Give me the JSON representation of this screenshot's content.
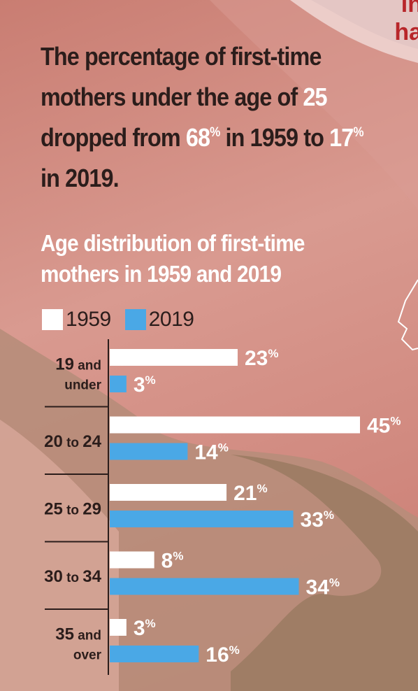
{
  "corner": {
    "line1": "in",
    "line2": "ha"
  },
  "headline": {
    "part1": "The percentage of first-time mothers under the age of ",
    "age": "25",
    "part2": " dropped from ",
    "from_value": "68",
    "pct1": "%",
    "part3": " in 1959 to ",
    "to_value": "17",
    "pct2": "%",
    "part4": " in 2019."
  },
  "colors": {
    "series_1959": "#ffffff",
    "series_2019": "#4aa8e6",
    "text_dark": "#2b1d1b"
  },
  "chart_data": {
    "type": "bar",
    "orientation": "horizontal",
    "title": "Age distribution of first-time mothers in 1959 and 2019",
    "categories": [
      {
        "lines": [
          {
            "num": "19",
            "word": " and"
          },
          {
            "num": "",
            "word": "under"
          }
        ]
      },
      {
        "lines": [
          {
            "num": "20",
            "word": " to ",
            "num2": "24"
          }
        ]
      },
      {
        "lines": [
          {
            "num": "25",
            "word": " to ",
            "num2": "29"
          }
        ]
      },
      {
        "lines": [
          {
            "num": "30",
            "word": " to ",
            "num2": "34"
          }
        ]
      },
      {
        "lines": [
          {
            "num": "35",
            "word": " and"
          },
          {
            "num": "",
            "word": "over"
          }
        ]
      }
    ],
    "category_names": [
      "19 and under",
      "20 to 24",
      "25 to 29",
      "30 to 34",
      "35 and over"
    ],
    "series": [
      {
        "name": "1959",
        "values": [
          23,
          45,
          21,
          8,
          3
        ]
      },
      {
        "name": "2019",
        "values": [
          3,
          14,
          33,
          34,
          16
        ]
      }
    ],
    "value_suffix": "%",
    "xlim": [
      0,
      45
    ],
    "legend_position": "top-left"
  }
}
